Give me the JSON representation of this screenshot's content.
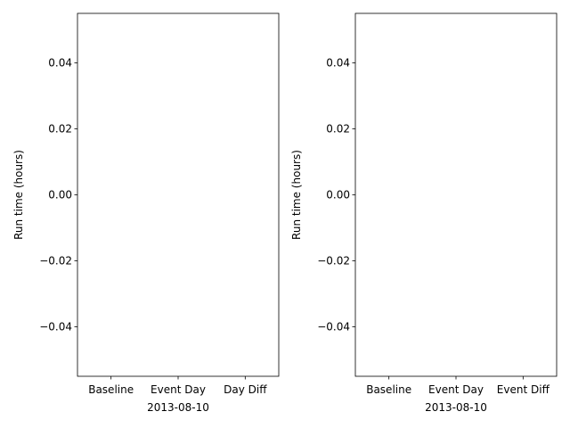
{
  "chart_data": [
    {
      "type": "bar",
      "categories": [
        "Baseline",
        "Event Day",
        "Day Diff"
      ],
      "values": [
        0,
        0,
        0
      ],
      "xlabel": "2013-08-10",
      "ylabel": "Run time (hours)",
      "ylim": [
        -0.055,
        0.055
      ],
      "yticks": [
        -0.04,
        -0.02,
        0.0,
        0.02,
        0.04
      ],
      "ytick_labels": [
        "−0.04",
        "−0.02",
        "0.00",
        "0.02",
        "0.04"
      ],
      "grid": false
    },
    {
      "type": "bar",
      "categories": [
        "Baseline",
        "Event Day",
        "Event Diff"
      ],
      "values": [
        0,
        0,
        0
      ],
      "xlabel": "2013-08-10",
      "ylabel": "Run time (hours)",
      "ylim": [
        -0.055,
        0.055
      ],
      "yticks": [
        -0.04,
        -0.02,
        0.0,
        0.02,
        0.04
      ],
      "ytick_labels": [
        "−0.04",
        "−0.02",
        "0.00",
        "0.02",
        "0.04"
      ],
      "grid": false
    }
  ]
}
